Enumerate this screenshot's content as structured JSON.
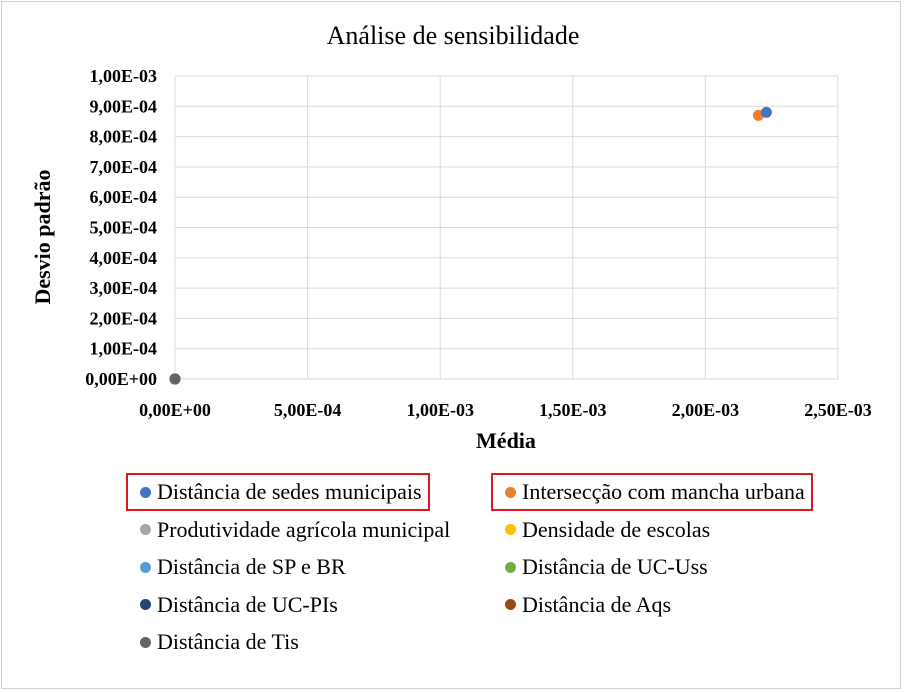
{
  "chart_data": {
    "type": "scatter",
    "title": "Análise  de sensibilidade",
    "xlabel": "Média",
    "ylabel": "Desvio padrão",
    "xlim": [
      0,
      0.0025
    ],
    "ylim": [
      0,
      0.001
    ],
    "x_ticks": [
      "0,00E+00",
      "5,00E-04",
      "1,00E-03",
      "1,50E-03",
      "2,00E-03",
      "2,50E-03"
    ],
    "y_ticks": [
      "0,00E+00",
      "1,00E-04",
      "2,00E-04",
      "3,00E-04",
      "4,00E-04",
      "5,00E-04",
      "6,00E-04",
      "7,00E-04",
      "8,00E-04",
      "9,00E-04",
      "1,00E-03"
    ],
    "grid": true,
    "legend_position": "bottom",
    "series": [
      {
        "name": "Distância de sedes municipais",
        "color": "#4472c4",
        "x": 0.00223,
        "y": 0.00088,
        "highlighted": true
      },
      {
        "name": "Intersecção com mancha urbana",
        "color": "#ed7d31",
        "x": 0.0022,
        "y": 0.00087,
        "highlighted": true
      },
      {
        "name": "Produtividade agrícola municipal",
        "color": "#a5a5a5",
        "x": 0,
        "y": 0
      },
      {
        "name": "Densidade de escolas",
        "color": "#ffc000",
        "x": 0,
        "y": 0
      },
      {
        "name": "Distância de SP e BR",
        "color": "#5b9bd5",
        "x": 0,
        "y": 0
      },
      {
        "name": "Distância de UC-Uss",
        "color": "#70ad47",
        "x": 0,
        "y": 0
      },
      {
        "name": "Distância de UC-PIs",
        "color": "#264478",
        "x": 0,
        "y": 0
      },
      {
        "name": "Distância de Aqs",
        "color": "#9e480e",
        "x": 0,
        "y": 0
      },
      {
        "name": "Distância de Tis",
        "color": "#636363",
        "x": 0,
        "y": 0
      }
    ]
  }
}
